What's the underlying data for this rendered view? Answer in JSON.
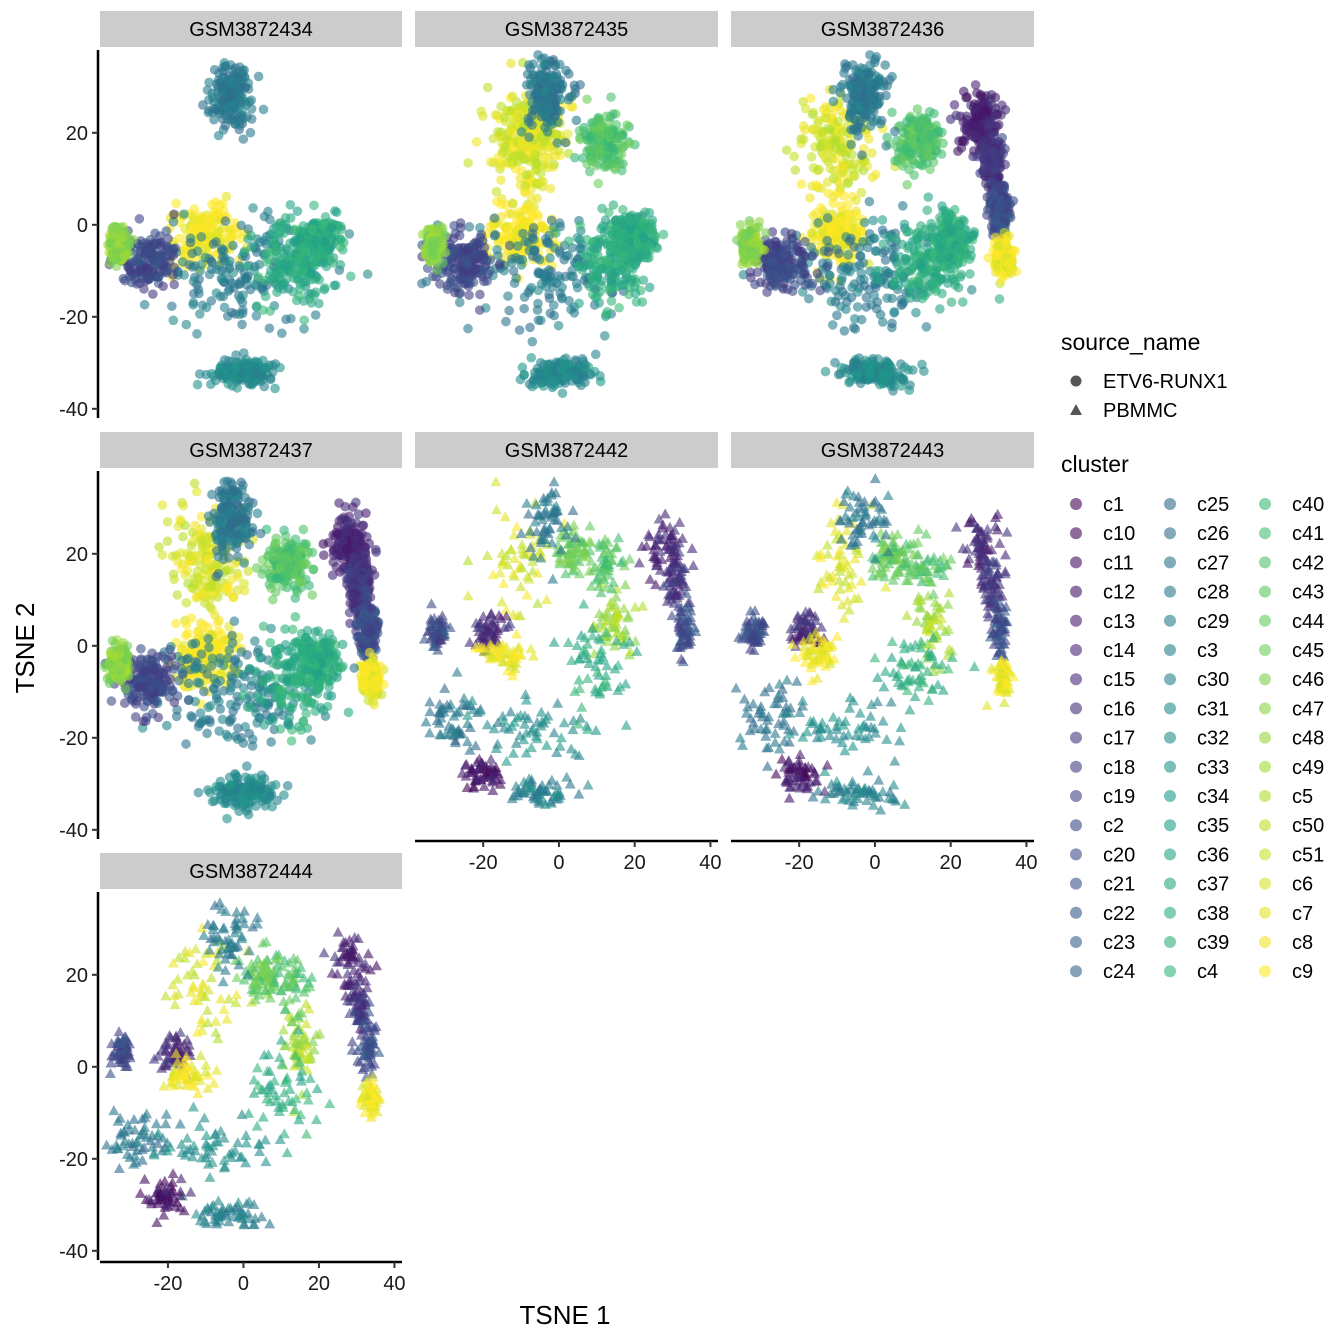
{
  "chart_data": {
    "type": "scatter",
    "xlabel": "TSNE 1",
    "ylabel": "TSNE 2",
    "xlim": [
      -38,
      42
    ],
    "ylim": [
      -42,
      38
    ],
    "xticks": [
      -20,
      0,
      20,
      40
    ],
    "yticks": [
      -40,
      -20,
      0,
      20
    ],
    "grid": false,
    "legend_position": "right",
    "facets": [
      {
        "label": "GSM3872434",
        "source": "ETV6-RUNX1"
      },
      {
        "label": "GSM3872435",
        "source": "ETV6-RUNX1"
      },
      {
        "label": "GSM3872436",
        "source": "ETV6-RUNX1"
      },
      {
        "label": "GSM3872437",
        "source": "ETV6-RUNX1"
      },
      {
        "label": "GSM3872442",
        "source": "PBMMC"
      },
      {
        "label": "GSM3872443",
        "source": "PBMMC"
      },
      {
        "label": "GSM3872444",
        "source": "PBMMC"
      }
    ],
    "legend_shape": {
      "title": "source_name",
      "entries": [
        {
          "label": "ETV6-RUNX1",
          "shape": "circle"
        },
        {
          "label": "PBMMC",
          "shape": "triangle"
        }
      ]
    },
    "legend_color": {
      "title": "cluster",
      "entries": [
        "c1",
        "c10",
        "c11",
        "c12",
        "c13",
        "c14",
        "c15",
        "c16",
        "c17",
        "c18",
        "c19",
        "c2",
        "c20",
        "c21",
        "c22",
        "c23",
        "c24",
        "c25",
        "c26",
        "c27",
        "c28",
        "c29",
        "c3",
        "c30",
        "c31",
        "c32",
        "c33",
        "c34",
        "c35",
        "c36",
        "c37",
        "c38",
        "c39",
        "c4",
        "c40",
        "c41",
        "c42",
        "c43",
        "c44",
        "c45",
        "c46",
        "c47",
        "c48",
        "c49",
        "c5",
        "c50",
        "c51",
        "c6",
        "c7",
        "c8",
        "c9"
      ]
    },
    "clusters": [
      {
        "cx": -10,
        "cy": 18,
        "sx": 5,
        "sy": 6,
        "color_index": 47,
        "facets": [
          1,
          2,
          3,
          4,
          5,
          6
        ]
      },
      {
        "cx": -5,
        "cy": 21,
        "sx": 3,
        "sy": 4,
        "color_index": 47,
        "facets": [
          1
        ]
      },
      {
        "cx": 15,
        "cy": 5,
        "sx": 2.5,
        "sy": 4,
        "color_index": 43,
        "facets": [
          4,
          5,
          6
        ]
      },
      {
        "cx": 12,
        "cy": 18,
        "sx": 3,
        "sy": 3,
        "color_index": 36,
        "facets": [
          1,
          2,
          3,
          4,
          5,
          6
        ]
      },
      {
        "cx": 4,
        "cy": 20,
        "sx": 2.5,
        "sy": 2.5,
        "color_index": 38,
        "facets": [
          4,
          5,
          6
        ]
      },
      {
        "cx": -3,
        "cy": 28,
        "sx": 3,
        "sy": 4,
        "color_index": 20,
        "facets": [
          0,
          1,
          2,
          3,
          4,
          5,
          6
        ]
      },
      {
        "cx": 28,
        "cy": 22,
        "sx": 2.5,
        "sy": 3,
        "color_index": 5,
        "facets": [
          2,
          3,
          4,
          5,
          6
        ]
      },
      {
        "cx": 31,
        "cy": 13,
        "sx": 1.5,
        "sy": 3,
        "color_index": 8,
        "facets": [
          2,
          3,
          4,
          5,
          6
        ]
      },
      {
        "cx": 33,
        "cy": 3,
        "sx": 1.2,
        "sy": 3,
        "color_index": 12,
        "facets": [
          2,
          3,
          4,
          5,
          6
        ]
      },
      {
        "cx": 34,
        "cy": -7,
        "sx": 1.3,
        "sy": 2,
        "color_index": 49,
        "facets": [
          2,
          3,
          5,
          6
        ]
      },
      {
        "cx": -10,
        "cy": -2,
        "sx": 4,
        "sy": 3.5,
        "color_index": 50,
        "facets": [
          0,
          1,
          2,
          3
        ]
      },
      {
        "cx": -2,
        "cy": -10,
        "sx": 10,
        "sy": 6,
        "color_index": 21,
        "facets": [
          0,
          1,
          2,
          3
        ]
      },
      {
        "cx": 14,
        "cy": -8,
        "sx": 5,
        "sy": 5,
        "color_index": 31,
        "facets": [
          0,
          1,
          2,
          3
        ]
      },
      {
        "cx": -25,
        "cy": -8,
        "sx": 4,
        "sy": 3,
        "color_index": 11,
        "facets": [
          0,
          1,
          2,
          3
        ]
      },
      {
        "cx": -33,
        "cy": -4,
        "sx": 1.2,
        "sy": 1.8,
        "color_index": 41,
        "facets": [
          0,
          1,
          2,
          3
        ]
      },
      {
        "cx": 20,
        "cy": -3,
        "sx": 2.5,
        "sy": 2.5,
        "color_index": 31,
        "facets": [
          0,
          1,
          2,
          3
        ]
      },
      {
        "cx": -28,
        "cy": -16,
        "sx": 5,
        "sy": 4,
        "color_index": 19,
        "facets": [
          4,
          5,
          6
        ]
      },
      {
        "cx": -8,
        "cy": -18,
        "sx": 8,
        "sy": 3,
        "color_index": 25,
        "facets": [
          4,
          5,
          6
        ]
      },
      {
        "cx": -5,
        "cy": -32,
        "sx": 5,
        "sy": 1.5,
        "color_index": 22,
        "facets": [
          4,
          5,
          6
        ]
      },
      {
        "cx": -20,
        "cy": -28,
        "sx": 3,
        "sy": 2,
        "color_index": 3,
        "facets": [
          4,
          5,
          6
        ]
      },
      {
        "cx": 10,
        "cy": -5,
        "sx": 5,
        "sy": 5,
        "color_index": 31,
        "facets": [
          4,
          5,
          6
        ]
      },
      {
        "cx": -32,
        "cy": 3,
        "sx": 1.5,
        "sy": 2,
        "color_index": 11,
        "facets": [
          4,
          5,
          6
        ]
      },
      {
        "cx": -18,
        "cy": 3,
        "sx": 2,
        "sy": 2,
        "color_index": 6,
        "facets": [
          4,
          5,
          6
        ]
      },
      {
        "cx": -15,
        "cy": -2,
        "sx": 3,
        "sy": 2,
        "color_index": 49,
        "facets": [
          4,
          5,
          6
        ]
      },
      {
        "cx": 0,
        "cy": -32,
        "sx": 4,
        "sy": 1.5,
        "color_index": 24,
        "facets": [
          0,
          1,
          2,
          3
        ]
      }
    ],
    "points_per_cluster": {
      "ETV6-RUNX1": 170,
      "PBMMC": 55
    }
  }
}
